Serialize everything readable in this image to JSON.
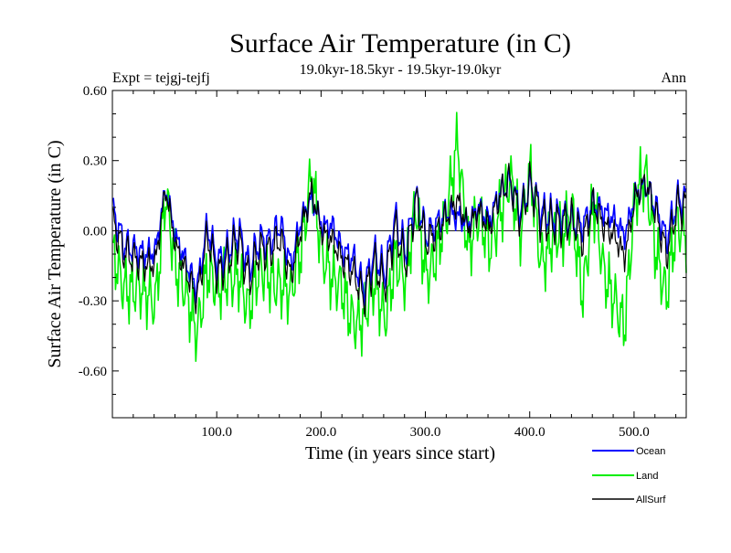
{
  "chart_data": {
    "type": "line",
    "title": "Surface Air Temperature (in C)",
    "subtitle": "19.0kyr-18.5kyr - 19.5kyr-19.0kyr",
    "expt_label": "Expt = tejgj-tejfj",
    "period_label": "Ann",
    "xlabel": "Time (in years since start)",
    "ylabel": "Surface Air Temperature (in C)",
    "xlim": [
      0,
      550
    ],
    "ylim": [
      -0.8,
      0.6
    ],
    "x_ticks": [
      100,
      200,
      300,
      400,
      500
    ],
    "x_tick_labels": [
      "100.0",
      "200.0",
      "300.0",
      "400.0",
      "500.0"
    ],
    "y_ticks": [
      -0.6,
      -0.3,
      0.0,
      0.3,
      0.6
    ],
    "y_tick_labels": [
      "-0.60",
      "-0.30",
      "0.00",
      "0.30",
      "0.60"
    ],
    "x_minor_step": 20,
    "y_minor_step": 0.1,
    "zero_line": true,
    "legend_position": "bottom-right",
    "series": [
      {
        "name": "Ocean",
        "color": "#0000ff",
        "x_start": 1,
        "x_step": 10,
        "values": [
          0.08,
          -0.06,
          -0.08,
          -0.1,
          -0.09,
          0.18,
          -0.03,
          -0.14,
          -0.25,
          0.02,
          -0.14,
          -0.08,
          0.0,
          -0.16,
          -0.04,
          -0.05,
          0.03,
          -0.15,
          0.05,
          0.14,
          0.02,
          0.02,
          -0.09,
          -0.12,
          -0.25,
          -0.1,
          -0.18,
          0.05,
          -0.09,
          0.14,
          -0.02,
          0.03,
          0.08,
          0.06,
          0.03,
          0.1,
          0.04,
          0.16,
          0.21,
          0.08,
          0.2,
          0.08,
          0.06,
          0.06,
          0.04,
          0.02,
          0.12,
          0.08,
          0.05,
          -0.02,
          0.15,
          0.2,
          0.1,
          -0.04,
          0.13
        ]
      },
      {
        "name": "Land",
        "color": "#00ee00",
        "x_start": 1,
        "x_step": 10,
        "values": [
          -0.1,
          -0.2,
          -0.25,
          -0.3,
          -0.3,
          0.2,
          -0.2,
          -0.3,
          -0.4,
          -0.15,
          -0.3,
          -0.2,
          -0.15,
          -0.35,
          -0.2,
          -0.18,
          -0.2,
          -0.3,
          -0.1,
          0.3,
          -0.1,
          -0.25,
          -0.25,
          -0.35,
          -0.4,
          -0.25,
          -0.35,
          -0.1,
          -0.25,
          0.1,
          -0.15,
          -0.1,
          0.05,
          0.4,
          -0.05,
          0.05,
          -0.1,
          0.1,
          0.25,
          -0.05,
          0.25,
          -0.1,
          -0.05,
          -0.05,
          0.1,
          -0.25,
          0.1,
          -0.2,
          -0.25,
          -0.4,
          0.1,
          0.25,
          -0.05,
          -0.3,
          0.0
        ]
      },
      {
        "name": "AllSurf",
        "color": "#000000",
        "x_start": 1,
        "x_step": 10,
        "values": [
          0.03,
          -0.09,
          -0.12,
          -0.15,
          -0.14,
          0.18,
          -0.07,
          -0.18,
          -0.29,
          -0.02,
          -0.19,
          -0.12,
          -0.04,
          -0.21,
          -0.08,
          -0.09,
          -0.03,
          -0.2,
          0.01,
          0.17,
          -0.01,
          -0.04,
          -0.13,
          -0.18,
          -0.29,
          -0.14,
          -0.23,
          0.01,
          -0.14,
          0.13,
          -0.05,
          -0.01,
          0.07,
          0.13,
          0.01,
          0.09,
          0.01,
          0.15,
          0.22,
          0.05,
          0.21,
          0.04,
          0.03,
          0.03,
          0.05,
          -0.04,
          0.12,
          0.02,
          -0.02,
          -0.11,
          0.14,
          0.21,
          0.07,
          -0.1,
          0.1
        ]
      }
    ]
  }
}
